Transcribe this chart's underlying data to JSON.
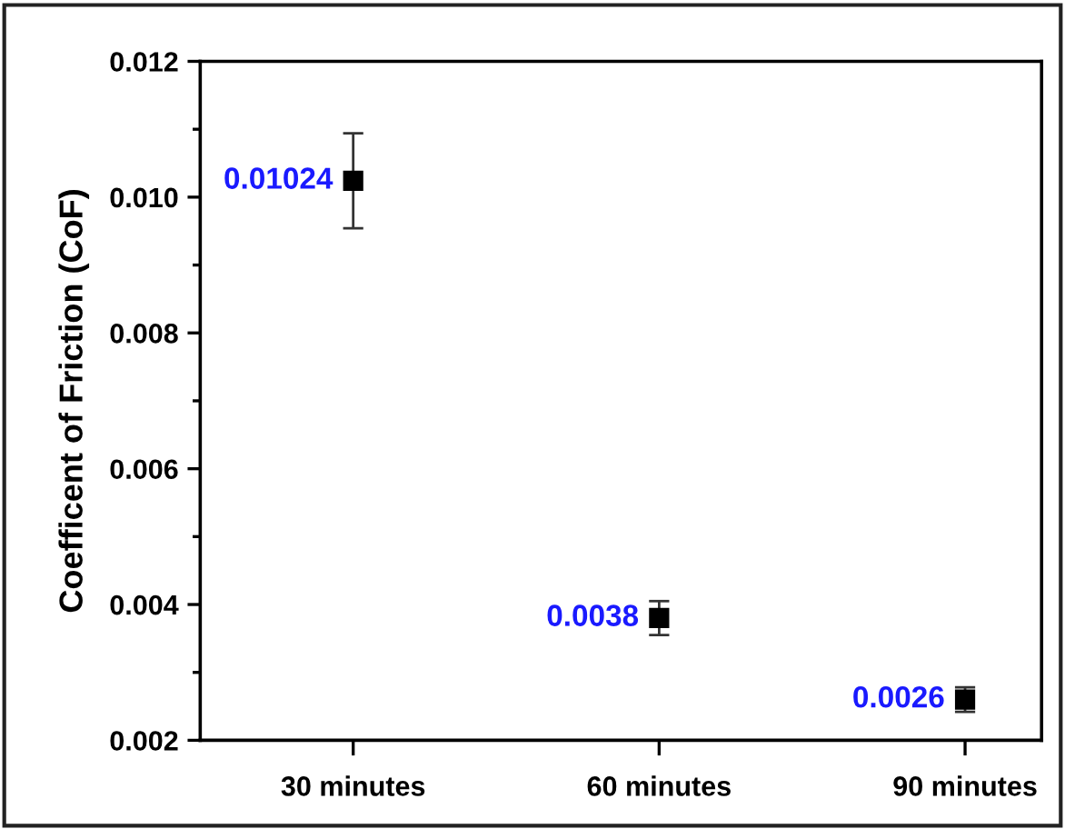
{
  "chart_data": {
    "type": "scatter",
    "ylabel": "Coefficent of Friction (CoF)",
    "categories": [
      "30 minutes",
      "60 minutes",
      "90 minutes"
    ],
    "series": [
      {
        "color": "#000000",
        "values": [
          0.01024,
          0.0038,
          0.0026
        ],
        "errors": [
          0.0007,
          0.00025,
          0.00018
        ]
      }
    ],
    "ylim": [
      0.002,
      0.012
    ],
    "yticks": [
      {
        "value": 0.002,
        "label": "0.002"
      },
      {
        "value": 0.004,
        "label": "0.004"
      },
      {
        "value": 0.006,
        "label": "0.006"
      },
      {
        "value": 0.008,
        "label": "0.008"
      },
      {
        "value": 0.01,
        "label": "0.010"
      },
      {
        "value": 0.012,
        "label": "0.012"
      }
    ],
    "data_labels": true,
    "marker": "square",
    "grid": false
  }
}
